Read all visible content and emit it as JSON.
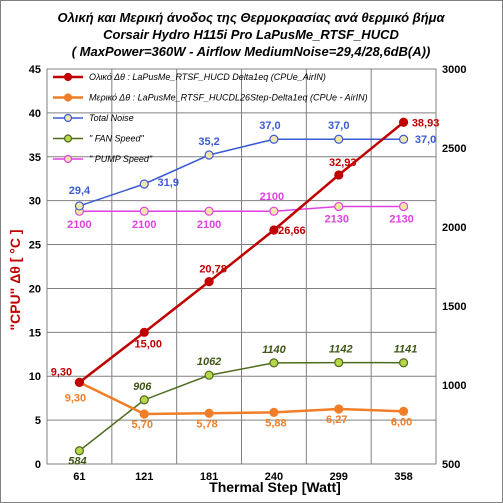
{
  "chart_data": {
    "type": "line",
    "title_lines": [
      "Ολική και Μερική άνοδος της Θερμοκρασίας ανά θερμικό βήμα",
      "Corsair Hydro H115i Pro   LaPusMe_RTSF_HUCD",
      "( MaxPower=360W - Airflow MediumNoise=29,4/28,6dB(A))"
    ],
    "xlabel": "Thermal Step [Watt]",
    "ylabel": "\"CPU\" Δθ  [ °C ]",
    "categories": [
      "61",
      "121",
      "181",
      "240",
      "299",
      "358"
    ],
    "y_left": {
      "min": 0,
      "max": 45,
      "step": 5,
      "ticks": [
        "0",
        "5",
        "10",
        "15",
        "20",
        "25",
        "30",
        "35",
        "40",
        "45"
      ]
    },
    "y_right": {
      "min": 500,
      "max": 3000,
      "step": 500,
      "ticks": [
        "500",
        "1000",
        "1500",
        "2000",
        "2500",
        "3000"
      ]
    },
    "grid": true,
    "legend_position": "top-left",
    "series": [
      {
        "name": "Ολικό Δθ :  LaPusMe_RTSF_HUCD  Delta1eq (CPUe_AirIN)",
        "axis": "left",
        "color": "#C00000",
        "marker_fill": "#C00000",
        "width": 2.5,
        "values": [
          9.3,
          15.0,
          20.78,
          26.66,
          32.93,
          38.93
        ],
        "labels": [
          "9,30",
          "15,00",
          "20,78",
          "26,66",
          "32,93",
          "38,93"
        ],
        "label_color": "#C00000",
        "italic": false
      },
      {
        "name": "Μερικό Δθ :   LaPusMe_RTSF_HUCDL26Step-Delta1eq (CPUe - AirIN)",
        "axis": "left",
        "color": "#F07E28",
        "marker_fill": "#F07E28",
        "width": 2.5,
        "values": [
          9.3,
          5.7,
          5.78,
          5.88,
          6.27,
          6.0
        ],
        "labels": [
          "9,30",
          "5,70",
          "5,78",
          "5,88",
          "6,27",
          "6,00"
        ],
        "label_color": "#F07E28",
        "italic": false
      },
      {
        "name": "Total Noise",
        "axis": "left",
        "color": "#3B5BD6",
        "marker_fill": "#F2E7A8",
        "width": 1.5,
        "values": [
          29.4,
          31.9,
          35.2,
          37.0,
          37.0,
          37.0
        ],
        "labels": [
          "29,4",
          "31,9",
          "35,2",
          "37,0",
          "37,0",
          "37,0"
        ],
        "label_color": "#3B5BD6",
        "italic": false
      },
      {
        "name": "\" FAN Speed\"",
        "axis": "right",
        "color": "#4E6B1E",
        "marker_fill": "#B8D64A",
        "width": 1.5,
        "values": [
          584,
          906,
          1062,
          1140,
          1142,
          1141
        ],
        "labels": [
          "584",
          "906",
          "1062",
          "1140",
          "1142",
          "1141"
        ],
        "label_color": "#3F5716",
        "italic": true
      },
      {
        "name": "\" PUMP Speed\"",
        "axis": "right",
        "color": "#E040E0",
        "marker_fill": "#F2E7A8",
        "width": 1.5,
        "values": [
          2100,
          2100,
          2100,
          2100,
          2130,
          2130
        ],
        "labels": [
          "2100",
          "2100",
          "2100",
          "2100",
          "2130",
          "2130"
        ],
        "label_color": "#E040E0",
        "italic": false
      }
    ]
  }
}
